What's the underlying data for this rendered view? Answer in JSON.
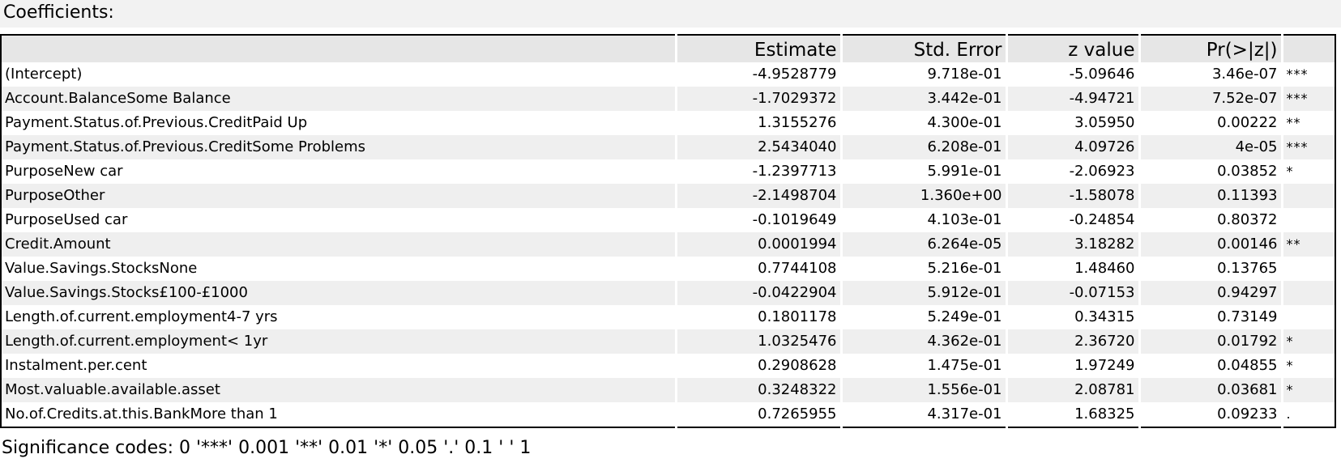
{
  "title": "Coefficients:",
  "table": {
    "headers": [
      "",
      "Estimate",
      "Std. Error",
      "z value",
      "Pr(>|z|)",
      ""
    ],
    "rows": [
      {
        "name": "(Intercept)",
        "estimate": "-4.9528779",
        "std_error": "9.718e-01",
        "z_value": "-5.09646",
        "p_value": "3.46e-07",
        "sig": "***"
      },
      {
        "name": "Account.BalanceSome Balance",
        "estimate": "-1.7029372",
        "std_error": "3.442e-01",
        "z_value": "-4.94721",
        "p_value": "7.52e-07",
        "sig": "***"
      },
      {
        "name": "Payment.Status.of.Previous.CreditPaid Up",
        "estimate": "1.3155276",
        "std_error": "4.300e-01",
        "z_value": "3.05950",
        "p_value": "0.00222",
        "sig": "**"
      },
      {
        "name": "Payment.Status.of.Previous.CreditSome Problems",
        "estimate": "2.5434040",
        "std_error": "6.208e-01",
        "z_value": "4.09726",
        "p_value": "4e-05",
        "sig": "***"
      },
      {
        "name": "PurposeNew car",
        "estimate": "-1.2397713",
        "std_error": "5.991e-01",
        "z_value": "-2.06923",
        "p_value": "0.03852",
        "sig": "*"
      },
      {
        "name": "PurposeOther",
        "estimate": "-2.1498704",
        "std_error": "1.360e+00",
        "z_value": "-1.58078",
        "p_value": "0.11393",
        "sig": ""
      },
      {
        "name": "PurposeUsed car",
        "estimate": "-0.1019649",
        "std_error": "4.103e-01",
        "z_value": "-0.24854",
        "p_value": "0.80372",
        "sig": ""
      },
      {
        "name": "Credit.Amount",
        "estimate": "0.0001994",
        "std_error": "6.264e-05",
        "z_value": "3.18282",
        "p_value": "0.00146",
        "sig": "**"
      },
      {
        "name": "Value.Savings.StocksNone",
        "estimate": "0.7744108",
        "std_error": "5.216e-01",
        "z_value": "1.48460",
        "p_value": "0.13765",
        "sig": ""
      },
      {
        "name": "Value.Savings.Stocks£100-£1000",
        "estimate": "-0.0422904",
        "std_error": "5.912e-01",
        "z_value": "-0.07153",
        "p_value": "0.94297",
        "sig": ""
      },
      {
        "name": "Length.of.current.employment4-7 yrs",
        "estimate": "0.1801178",
        "std_error": "5.249e-01",
        "z_value": "0.34315",
        "p_value": "0.73149",
        "sig": ""
      },
      {
        "name": "Length.of.current.employment< 1yr",
        "estimate": "1.0325476",
        "std_error": "4.362e-01",
        "z_value": "2.36720",
        "p_value": "0.01792",
        "sig": "*"
      },
      {
        "name": "Instalment.per.cent",
        "estimate": "0.2908628",
        "std_error": "1.475e-01",
        "z_value": "1.97249",
        "p_value": "0.04855",
        "sig": "*"
      },
      {
        "name": "Most.valuable.available.asset",
        "estimate": "0.3248322",
        "std_error": "1.556e-01",
        "z_value": "2.08781",
        "p_value": "0.03681",
        "sig": "*"
      },
      {
        "name": "No.of.Credits.at.this.BankMore than 1",
        "estimate": "0.7265955",
        "std_error": "4.317e-01",
        "z_value": "1.68325",
        "p_value": "0.09233",
        "sig": "."
      }
    ]
  },
  "footer": "Significance codes: 0 '***' 0.001 '**' 0.01 '*' 0.05 '.' 0.1 ' ' 1"
}
